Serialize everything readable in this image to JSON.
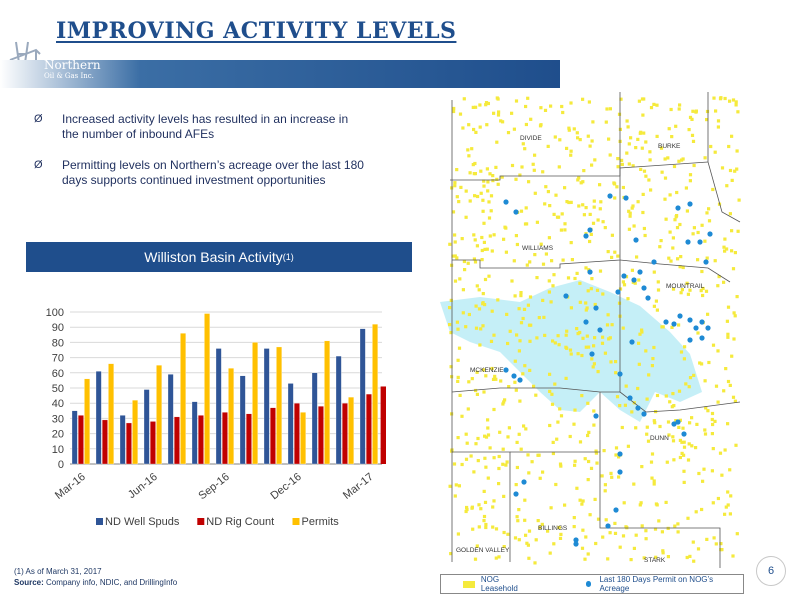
{
  "title": "IMPROVING ACTIVITY LEVELS",
  "logo": {
    "line1": "Northern",
    "line2": "Oil & Gas Inc."
  },
  "bullets": [
    "Increased activity levels has resulted in an increase in the number of inbound AFEs",
    "Permitting levels on Northern’s acreage over the last 180 days supports continued investment opportunities"
  ],
  "bullet_marker": "Ø",
  "chart_header": {
    "text": "Williston Basin Activity",
    "sup": "(1)"
  },
  "footnote": {
    "note1": "(1)    As of March 31, 2017",
    "source_label": "Source:",
    "source_text": " Company info, NDIC, and DrillingInfo"
  },
  "map": {
    "counties": [
      "DIVIDE",
      "BURKE",
      "WILLIAMS",
      "MOUNTRAIL",
      "MCKENZIE",
      "DUNN",
      "BILLINGS",
      "GOLDEN VALLEY",
      "STARK"
    ],
    "legend": {
      "leasehold": "NOG Leasehold",
      "permits": "Last 180 Days Permit on NOG’s Acreage"
    },
    "colors": {
      "leasehold": "#f5ea3c",
      "permit": "#1e8ad4",
      "water": "#9fe5f2"
    }
  },
  "page_number": "6",
  "chart_data": {
    "type": "bar",
    "categories": [
      "Mar-16",
      "Apr-16",
      "May-16",
      "Jun-16",
      "Jul-16",
      "Aug-16",
      "Sep-16",
      "Oct-16",
      "Nov-16",
      "Dec-16",
      "Jan-17",
      "Feb-17",
      "Mar-17"
    ],
    "tick_labels": [
      "Mar-16",
      "Jun-16",
      "Sep-16",
      "Dec-16",
      "Mar-17"
    ],
    "tick_indices": [
      0,
      3,
      6,
      9,
      12
    ],
    "series": [
      {
        "name": "ND Well Spuds",
        "color": "#2f5597",
        "values": [
          35,
          61,
          32,
          49,
          59,
          41,
          76,
          58,
          76,
          53,
          60,
          71,
          89
        ]
      },
      {
        "name": "ND Rig Count",
        "color": "#c00000",
        "values": [
          32,
          29,
          27,
          28,
          31,
          32,
          34,
          33,
          37,
          40,
          38,
          40,
          46
        ]
      },
      {
        "name": "Permits",
        "color": "#ffc000",
        "values": [
          56,
          66,
          42,
          65,
          86,
          99,
          63,
          80,
          77,
          34,
          81,
          44,
          92
        ]
      }
    ],
    "last_rig_only": 51,
    "ylim": [
      0,
      100
    ],
    "yticks": [
      0,
      10,
      20,
      30,
      40,
      50,
      60,
      70,
      80,
      90,
      100
    ],
    "grid": true,
    "legend_position": "bottom"
  }
}
